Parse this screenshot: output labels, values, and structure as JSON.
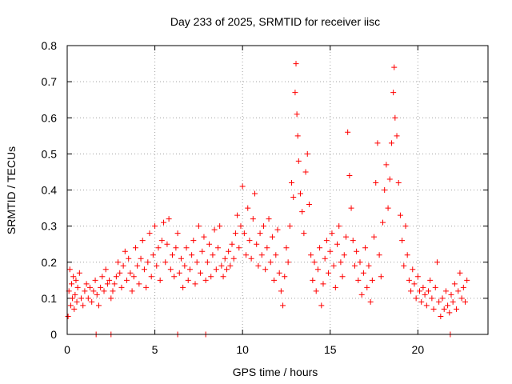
{
  "chart_data": {
    "type": "scatter",
    "title": "Day 233 of 2025, SRMTID for receiver iisc",
    "xlabel": "GPS time / hours",
    "ylabel": "SRMTID / TECUs",
    "xlim": [
      0,
      24.0
    ],
    "ylim": [
      0,
      0.8
    ],
    "xticks": [
      0,
      5,
      10,
      15,
      20
    ],
    "xtick_labels": [
      "0",
      "5",
      "10",
      "15",
      "20"
    ],
    "yticks": [
      0,
      0.1,
      0.2,
      0.3,
      0.4,
      0.5,
      0.6,
      0.7,
      0.8
    ],
    "ytick_labels": [
      "0",
      "0.1",
      "0.2",
      "0.3",
      "0.4",
      "0.5",
      "0.6",
      "0.7",
      "0.8"
    ],
    "grid": true,
    "marker": "plus",
    "color": "#ff0000",
    "series": [
      {
        "name": "SRMTID",
        "points": [
          [
            0.05,
            0.05
          ],
          [
            0.1,
            0.12
          ],
          [
            0.15,
            0.18
          ],
          [
            0.2,
            0.08
          ],
          [
            0.25,
            0.14
          ],
          [
            0.3,
            0.1
          ],
          [
            0.35,
            0.16
          ],
          [
            0.4,
            0.07
          ],
          [
            0.45,
            0.11
          ],
          [
            0.5,
            0.15
          ],
          [
            0.55,
            0.09
          ],
          [
            0.6,
            0.13
          ],
          [
            0.7,
            0.17
          ],
          [
            0.8,
            0.1
          ],
          [
            0.9,
            0.08
          ],
          [
            1.0,
            0.12
          ],
          [
            1.1,
            0.14
          ],
          [
            1.2,
            0.1
          ],
          [
            1.3,
            0.13
          ],
          [
            1.4,
            0.09
          ],
          [
            1.5,
            0.12
          ],
          [
            1.6,
            0.15
          ],
          [
            1.7,
            0.11
          ],
          [
            1.8,
            0.08
          ],
          [
            1.9,
            0.13
          ],
          [
            2.0,
            0.16
          ],
          [
            2.1,
            0.12
          ],
          [
            2.2,
            0.18
          ],
          [
            2.3,
            0.14
          ],
          [
            2.4,
            0.15
          ],
          [
            2.5,
            0.1
          ],
          [
            2.6,
            0.12
          ],
          [
            2.7,
            0.14
          ],
          [
            2.8,
            0.16
          ],
          [
            2.9,
            0.2
          ],
          [
            3.0,
            0.17
          ],
          [
            3.1,
            0.13
          ],
          [
            3.2,
            0.19
          ],
          [
            3.3,
            0.23
          ],
          [
            3.4,
            0.15
          ],
          [
            3.5,
            0.21
          ],
          [
            3.6,
            0.17
          ],
          [
            3.7,
            0.12
          ],
          [
            3.8,
            0.16
          ],
          [
            3.9,
            0.24
          ],
          [
            4.0,
            0.19
          ],
          [
            4.1,
            0.14
          ],
          [
            4.2,
            0.21
          ],
          [
            4.3,
            0.26
          ],
          [
            4.4,
            0.18
          ],
          [
            4.5,
            0.13
          ],
          [
            4.6,
            0.2
          ],
          [
            4.7,
            0.28
          ],
          [
            4.8,
            0.16
          ],
          [
            4.9,
            0.22
          ],
          [
            5.0,
            0.3
          ],
          [
            5.1,
            0.19
          ],
          [
            5.2,
            0.24
          ],
          [
            5.3,
            0.15
          ],
          [
            5.4,
            0.26
          ],
          [
            5.5,
            0.31
          ],
          [
            5.6,
            0.2
          ],
          [
            5.7,
            0.25
          ],
          [
            5.8,
            0.32
          ],
          [
            5.9,
            0.18
          ],
          [
            6.0,
            0.22
          ],
          [
            6.1,
            0.16
          ],
          [
            6.2,
            0.24
          ],
          [
            6.3,
            0.28
          ],
          [
            6.4,
            0.17
          ],
          [
            6.5,
            0.21
          ],
          [
            6.6,
            0.13
          ],
          [
            6.7,
            0.19
          ],
          [
            6.8,
            0.24
          ],
          [
            6.9,
            0.15
          ],
          [
            7.0,
            0.18
          ],
          [
            7.1,
            0.22
          ],
          [
            7.2,
            0.26
          ],
          [
            7.3,
            0.14
          ],
          [
            7.4,
            0.2
          ],
          [
            7.5,
            0.3
          ],
          [
            7.6,
            0.17
          ],
          [
            7.7,
            0.23
          ],
          [
            7.8,
            0.27
          ],
          [
            7.9,
            0.15
          ],
          [
            8.0,
            0.2
          ],
          [
            8.1,
            0.25
          ],
          [
            8.2,
            0.16
          ],
          [
            8.3,
            0.22
          ],
          [
            8.4,
            0.29
          ],
          [
            8.5,
            0.18
          ],
          [
            8.6,
            0.24
          ],
          [
            8.7,
            0.3
          ],
          [
            8.8,
            0.19
          ],
          [
            8.9,
            0.16
          ],
          [
            9.0,
            0.21
          ],
          [
            9.1,
            0.18
          ],
          [
            9.2,
            0.23
          ],
          [
            9.3,
            0.19
          ],
          [
            9.4,
            0.25
          ],
          [
            9.5,
            0.21
          ],
          [
            9.6,
            0.28
          ],
          [
            9.7,
            0.33
          ],
          [
            9.8,
            0.24
          ],
          [
            9.9,
            0.3
          ],
          [
            10.0,
            0.41
          ],
          [
            10.1,
            0.28
          ],
          [
            10.2,
            0.22
          ],
          [
            10.3,
            0.35
          ],
          [
            10.4,
            0.26
          ],
          [
            10.5,
            0.21
          ],
          [
            10.6,
            0.32
          ],
          [
            10.7,
            0.39
          ],
          [
            10.8,
            0.25
          ],
          [
            10.9,
            0.19
          ],
          [
            11.0,
            0.28
          ],
          [
            11.1,
            0.22
          ],
          [
            11.2,
            0.3
          ],
          [
            11.3,
            0.18
          ],
          [
            11.4,
            0.24
          ],
          [
            11.5,
            0.32
          ],
          [
            11.6,
            0.2
          ],
          [
            11.7,
            0.27
          ],
          [
            11.8,
            0.15
          ],
          [
            11.9,
            0.22
          ],
          [
            12.0,
            0.29
          ],
          [
            12.1,
            0.17
          ],
          [
            12.2,
            0.12
          ],
          [
            12.3,
            0.08
          ],
          [
            12.4,
            0.16
          ],
          [
            12.5,
            0.24
          ],
          [
            12.6,
            0.2
          ],
          [
            12.7,
            0.3
          ],
          [
            12.8,
            0.42
          ],
          [
            12.9,
            0.38
          ],
          [
            13.0,
            0.67
          ],
          [
            13.05,
            0.75
          ],
          [
            13.1,
            0.61
          ],
          [
            13.15,
            0.55
          ],
          [
            13.2,
            0.48
          ],
          [
            13.3,
            0.39
          ],
          [
            13.4,
            0.34
          ],
          [
            13.5,
            0.28
          ],
          [
            13.6,
            0.45
          ],
          [
            13.7,
            0.5
          ],
          [
            13.8,
            0.36
          ],
          [
            13.9,
            0.22
          ],
          [
            14.0,
            0.15
          ],
          [
            14.1,
            0.2
          ],
          [
            14.2,
            0.12
          ],
          [
            14.3,
            0.18
          ],
          [
            14.4,
            0.24
          ],
          [
            14.5,
            0.08
          ],
          [
            14.6,
            0.14
          ],
          [
            14.7,
            0.21
          ],
          [
            14.8,
            0.26
          ],
          [
            14.9,
            0.17
          ],
          [
            15.0,
            0.23
          ],
          [
            15.1,
            0.28
          ],
          [
            15.2,
            0.19
          ],
          [
            15.3,
            0.13
          ],
          [
            15.4,
            0.25
          ],
          [
            15.5,
            0.3
          ],
          [
            15.6,
            0.2
          ],
          [
            15.7,
            0.16
          ],
          [
            15.8,
            0.22
          ],
          [
            15.9,
            0.27
          ],
          [
            16.0,
            0.56
          ],
          [
            16.1,
            0.44
          ],
          [
            16.2,
            0.35
          ],
          [
            16.3,
            0.26
          ],
          [
            16.4,
            0.19
          ],
          [
            16.5,
            0.23
          ],
          [
            16.6,
            0.15
          ],
          [
            16.7,
            0.2
          ],
          [
            16.8,
            0.11
          ],
          [
            16.9,
            0.17
          ],
          [
            17.0,
            0.24
          ],
          [
            17.1,
            0.13
          ],
          [
            17.2,
            0.19
          ],
          [
            17.3,
            0.09
          ],
          [
            17.4,
            0.15
          ],
          [
            17.5,
            0.27
          ],
          [
            17.6,
            0.42
          ],
          [
            17.7,
            0.53
          ],
          [
            17.8,
            0.22
          ],
          [
            17.9,
            0.16
          ],
          [
            18.0,
            0.31
          ],
          [
            18.1,
            0.4
          ],
          [
            18.2,
            0.47
          ],
          [
            18.3,
            0.35
          ],
          [
            18.4,
            0.43
          ],
          [
            18.5,
            0.53
          ],
          [
            18.6,
            0.67
          ],
          [
            18.65,
            0.74
          ],
          [
            18.7,
            0.6
          ],
          [
            18.8,
            0.55
          ],
          [
            18.9,
            0.42
          ],
          [
            19.0,
            0.33
          ],
          [
            19.1,
            0.26
          ],
          [
            19.2,
            0.19
          ],
          [
            19.3,
            0.3
          ],
          [
            19.4,
            0.22
          ],
          [
            19.5,
            0.15
          ],
          [
            19.6,
            0.12
          ],
          [
            19.7,
            0.18
          ],
          [
            19.8,
            0.14
          ],
          [
            19.9,
            0.1
          ],
          [
            20.0,
            0.16
          ],
          [
            20.1,
            0.12
          ],
          [
            20.2,
            0.09
          ],
          [
            20.3,
            0.13
          ],
          [
            20.4,
            0.11
          ],
          [
            20.5,
            0.08
          ],
          [
            20.6,
            0.12
          ],
          [
            20.7,
            0.15
          ],
          [
            20.8,
            0.1
          ],
          [
            20.9,
            0.07
          ],
          [
            21.0,
            0.13
          ],
          [
            21.1,
            0.2
          ],
          [
            21.2,
            0.09
          ],
          [
            21.3,
            0.05
          ],
          [
            21.4,
            0.1
          ],
          [
            21.5,
            0.07
          ],
          [
            21.6,
            0.12
          ],
          [
            21.7,
            0.08
          ],
          [
            21.8,
            0.06
          ],
          [
            21.9,
            0.11
          ],
          [
            22.0,
            0.09
          ],
          [
            22.1,
            0.14
          ],
          [
            22.2,
            0.07
          ],
          [
            22.3,
            0.12
          ],
          [
            22.4,
            0.17
          ],
          [
            22.5,
            0.1
          ],
          [
            22.6,
            0.13
          ],
          [
            22.7,
            0.09
          ],
          [
            22.8,
            0.15
          ],
          [
            1.65,
            0.0
          ],
          [
            2.5,
            0.0
          ],
          [
            6.3,
            0.0
          ],
          [
            7.9,
            0.0
          ],
          [
            21.85,
            0.0
          ]
        ]
      }
    ]
  }
}
